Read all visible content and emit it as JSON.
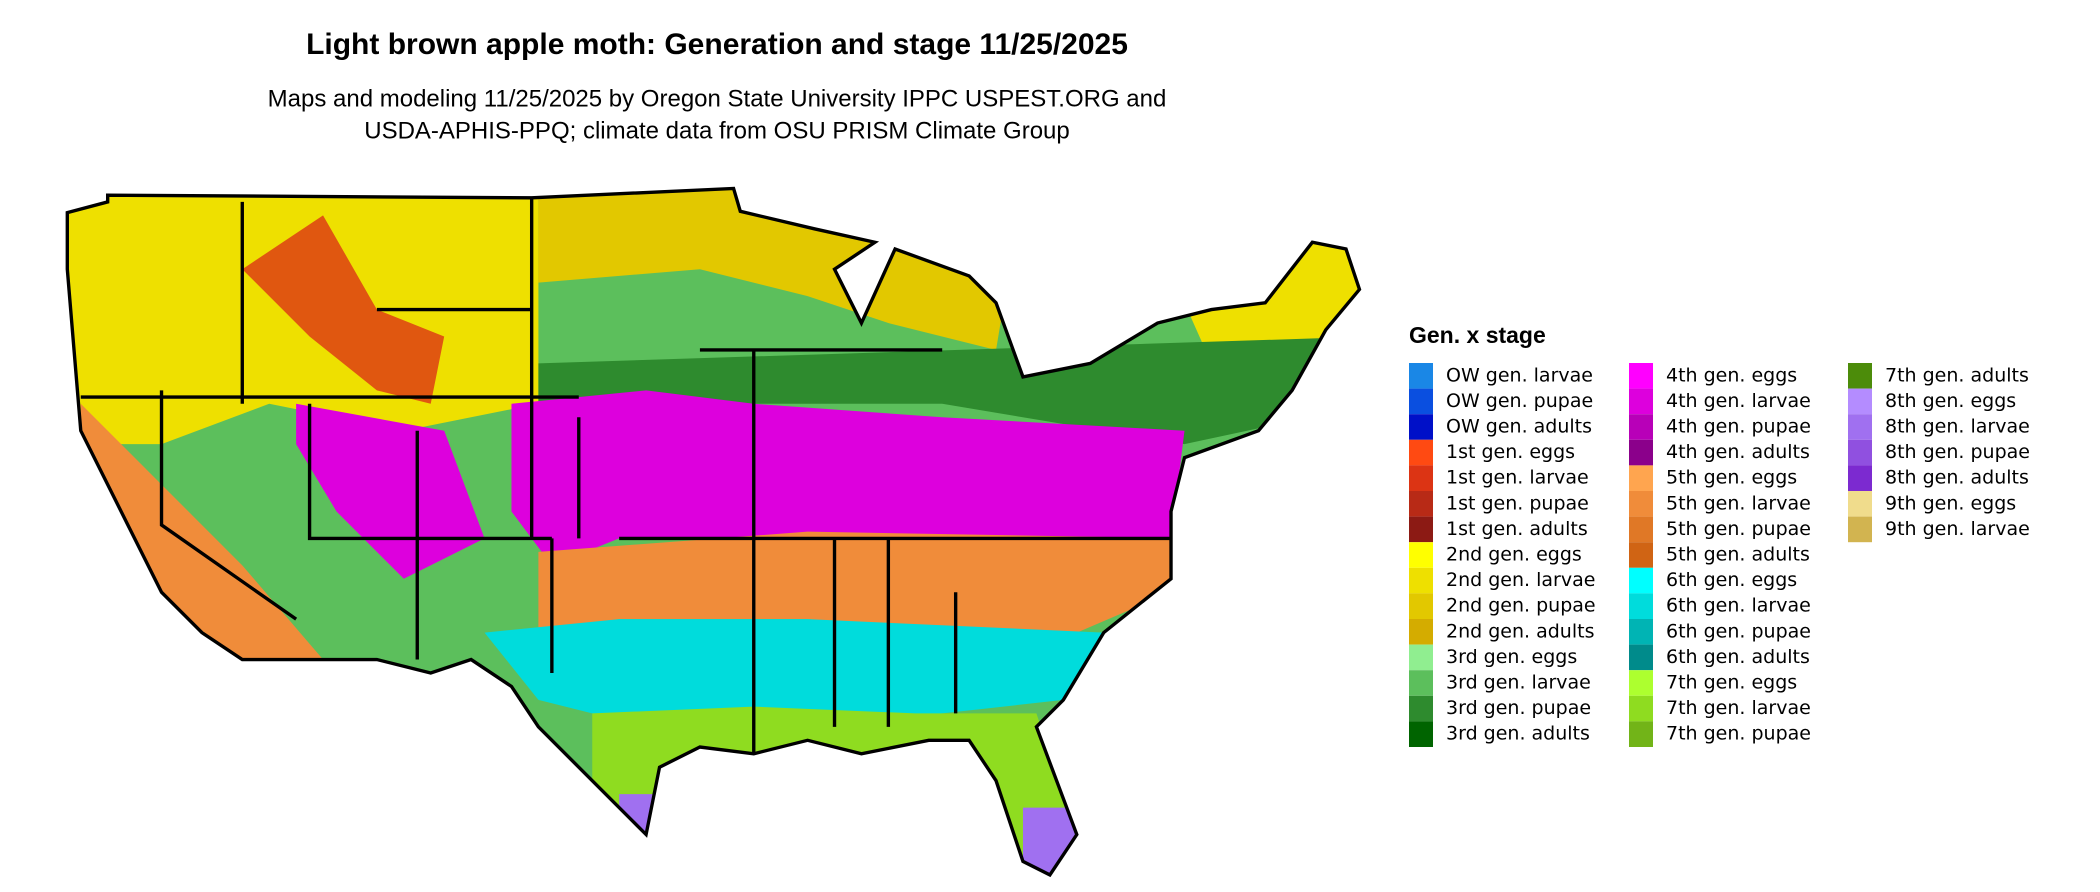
{
  "header": {
    "title": "Light brown apple moth: Generation and stage 11/25/2025",
    "subtitle": [
      "Maps and modeling 11/25/2025 by Oregon State University IPPC USPEST.ORG and",
      "USDA-APHIS-PPQ; climate data from OSU PRISM Climate Group"
    ]
  },
  "legend": {
    "title": "Gen. x stage",
    "items": [
      {
        "label": "OW gen. larvae",
        "color": "#1a87e6"
      },
      {
        "label": "OW gen. pupae",
        "color": "#0a4fe0"
      },
      {
        "label": "OW gen. adults",
        "color": "#0010c8"
      },
      {
        "label": "1st gen. eggs",
        "color": "#ff4a12"
      },
      {
        "label": "1st gen. larvae",
        "color": "#dc3414"
      },
      {
        "label": "1st gen. pupae",
        "color": "#b82a16"
      },
      {
        "label": "1st gen. adults",
        "color": "#8c1a14"
      },
      {
        "label": "2nd gen. eggs",
        "color": "#ffff00"
      },
      {
        "label": "2nd gen. larvae",
        "color": "#eee000"
      },
      {
        "label": "2nd gen. pupae",
        "color": "#e2c800"
      },
      {
        "label": "2nd gen. adults",
        "color": "#d4ac00"
      },
      {
        "label": "3rd gen. eggs",
        "color": "#90ee90"
      },
      {
        "label": "3rd gen. larvae",
        "color": "#5cbf5c"
      },
      {
        "label": "3rd gen. pupae",
        "color": "#2e8b2e"
      },
      {
        "label": "3rd gen. adults",
        "color": "#006400"
      },
      {
        "label": "4th gen. eggs",
        "color": "#ff00ff"
      },
      {
        "label": "4th gen. larvae",
        "color": "#dd00dd"
      },
      {
        "label": "4th gen. pupae",
        "color": "#b800b8"
      },
      {
        "label": "4th gen. adults",
        "color": "#8b008b"
      },
      {
        "label": "5th gen. eggs",
        "color": "#ffa54f"
      },
      {
        "label": "5th gen. larvae",
        "color": "#f08c3a"
      },
      {
        "label": "5th gen. pupae",
        "color": "#e07826"
      },
      {
        "label": "5th gen. adults",
        "color": "#d06414"
      },
      {
        "label": "6th gen. eggs",
        "color": "#00ffff"
      },
      {
        "label": "6th gen. larvae",
        "color": "#00dcdc"
      },
      {
        "label": "6th gen. pupae",
        "color": "#00b4b4"
      },
      {
        "label": "6th gen. adults",
        "color": "#008b8b"
      },
      {
        "label": "7th gen. eggs",
        "color": "#adff2f"
      },
      {
        "label": "7th gen. larvae",
        "color": "#8fdc20"
      },
      {
        "label": "7th gen. pupae",
        "color": "#72b418"
      },
      {
        "label": "7th gen. adults",
        "color": "#4c8c0a"
      },
      {
        "label": "8th gen. eggs",
        "color": "#b48cff"
      },
      {
        "label": "8th gen. larvae",
        "color": "#a070f0"
      },
      {
        "label": "8th gen. pupae",
        "color": "#9050e0"
      },
      {
        "label": "8th gen. adults",
        "color": "#7c2ad0"
      },
      {
        "label": "9th gen. eggs",
        "color": "#f0dc8c"
      },
      {
        "label": "9th gen. larvae",
        "color": "#d2b450"
      }
    ]
  }
}
